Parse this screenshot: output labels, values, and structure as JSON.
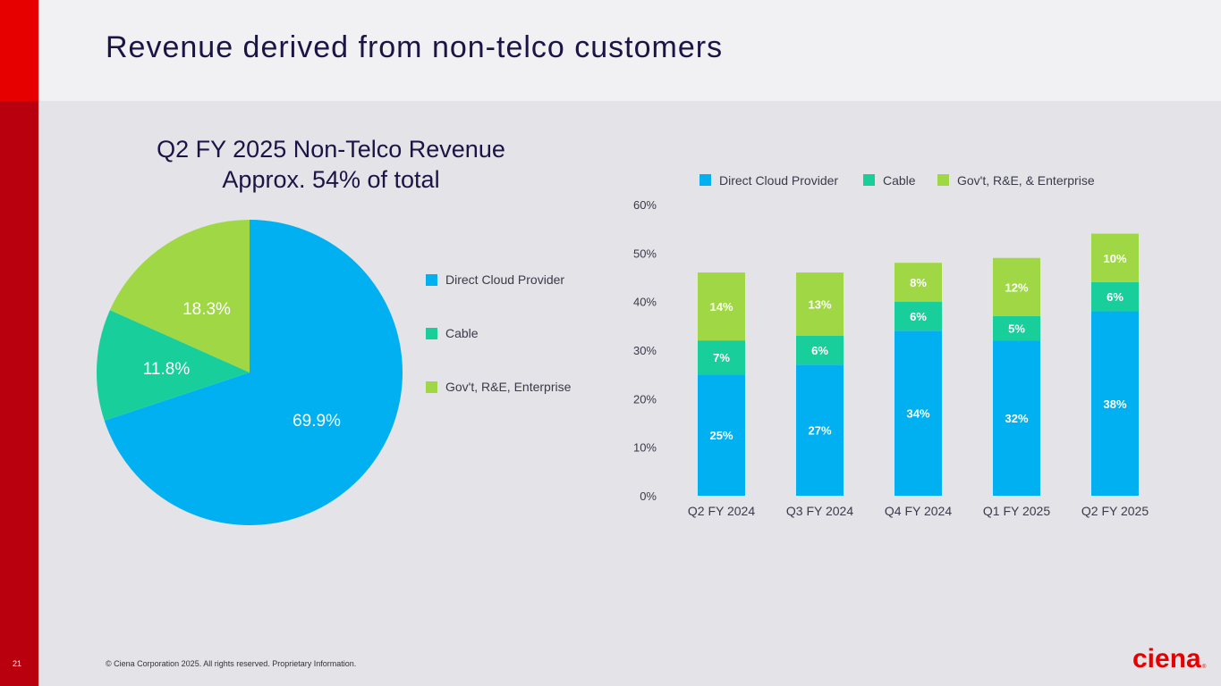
{
  "page": {
    "title": "Revenue derived from non-telco customers",
    "page_number": "21",
    "copyright": "© Ciena Corporation 2025. All rights reserved. Proprietary Information.",
    "logo": "ciena"
  },
  "colors": {
    "direct_cloud": "#00b0f0",
    "cable": "#18cf9c",
    "govt": "#9fd844",
    "title": "#1b1444",
    "brand_red": "#e60000"
  },
  "chart_data": [
    {
      "type": "pie",
      "title": "Q2 FY 2025 Non-Telco Revenue",
      "subtitle": "Approx. 54% of total",
      "slices": [
        {
          "name": "Direct Cloud Provider",
          "value": 69.9,
          "label": "69.9%"
        },
        {
          "name": "Cable",
          "value": 11.8,
          "label": "11.8%"
        },
        {
          "name": "Gov't, R&E, Enterprise",
          "value": 18.3,
          "label": "18.3%"
        }
      ],
      "legend_placement": "right"
    },
    {
      "type": "bar",
      "stacked": true,
      "categories": [
        "Q2 FY 2024",
        "Q3 FY 2024",
        "Q4 FY 2024",
        "Q1 FY 2025",
        "Q2 FY 2025"
      ],
      "series": [
        {
          "name": "Direct Cloud Provider",
          "values": [
            25,
            27,
            34,
            32,
            38
          ],
          "labels": [
            "25%",
            "27%",
            "34%",
            "32%",
            "38%"
          ]
        },
        {
          "name": "Cable",
          "values": [
            7,
            6,
            6,
            5,
            6
          ],
          "labels": [
            "7%",
            "6%",
            "6%",
            "5%",
            "6%"
          ]
        },
        {
          "name": "Gov't, R&E, & Enterprise",
          "values": [
            14,
            13,
            8,
            12,
            10
          ],
          "labels": [
            "14%",
            "13%",
            "8%",
            "12%",
            "10%"
          ]
        }
      ],
      "ylim": [
        0,
        60
      ],
      "yticks": [
        0,
        10,
        20,
        30,
        40,
        50,
        60
      ],
      "ytick_labels": [
        "0%",
        "10%",
        "20%",
        "30%",
        "40%",
        "50%",
        "60%"
      ],
      "grid": false,
      "legend_placement": "top"
    }
  ]
}
